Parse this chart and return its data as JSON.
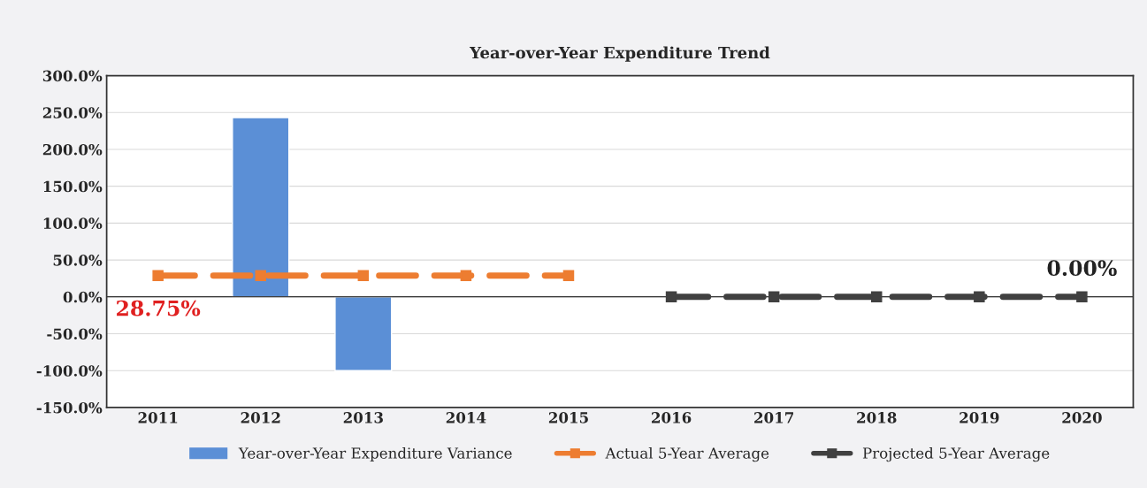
{
  "chart_data": {
    "type": "bar",
    "title": "Year-over-Year Expenditure Trend",
    "categories": [
      "2011",
      "2012",
      "2013",
      "2014",
      "2015",
      "2016",
      "2017",
      "2018",
      "2019",
      "2020"
    ],
    "series": [
      {
        "name": "Year-over-Year Expenditure Variance",
        "color": "#5b8fd6",
        "values": [
          null,
          243,
          -100,
          null,
          null,
          null,
          null,
          null,
          null,
          null
        ]
      },
      {
        "name": "Actual 5-Year Average",
        "type": "line",
        "color": "#ed7d31",
        "line_style": "dashed",
        "marker": "square",
        "values": [
          28.75,
          28.75,
          28.75,
          28.75,
          28.75,
          null,
          null,
          null,
          null,
          null
        ]
      },
      {
        "name": "Projected 5-Year Average",
        "type": "line",
        "color": "#404040",
        "line_style": "dashed",
        "marker": "square",
        "values": [
          null,
          null,
          null,
          null,
          null,
          0,
          0,
          0,
          0,
          0
        ]
      }
    ],
    "annotations": [
      {
        "text": "28.75%",
        "x": "2011",
        "y": 28.75
      },
      {
        "text": "0.00%",
        "x": "2020",
        "y": 0
      }
    ],
    "ylim": [
      -150,
      300
    ],
    "yticks": [
      {
        "value": -150,
        "label": "-150.0%"
      },
      {
        "value": -100,
        "label": "-100.0%"
      },
      {
        "value": -50,
        "label": "-50.0%"
      },
      {
        "value": 0,
        "label": "0.0%"
      },
      {
        "value": 50,
        "label": "50.0%"
      },
      {
        "value": 100,
        "label": "100.0%"
      },
      {
        "value": 150,
        "label": "150.0%"
      },
      {
        "value": 200,
        "label": "200.0%"
      },
      {
        "value": 250,
        "label": "250.0%"
      },
      {
        "value": 300,
        "label": "300.0%"
      }
    ],
    "grid": "y",
    "legend": "bottom"
  }
}
